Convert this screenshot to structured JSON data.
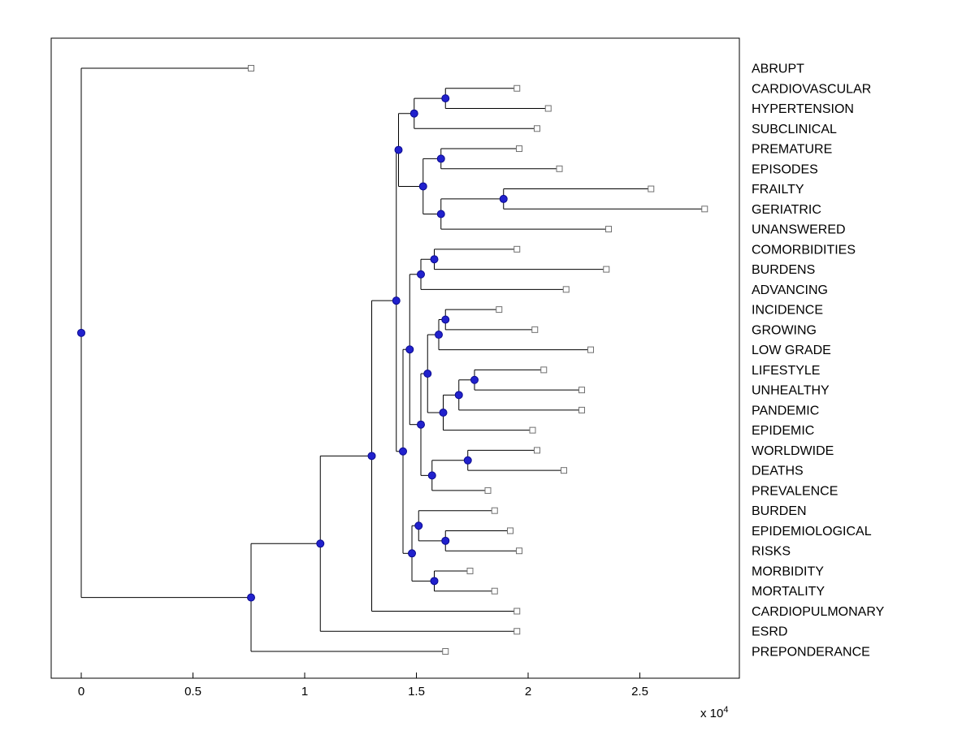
{
  "figure": {
    "background": "#ffffff",
    "plot_border_color": "#000000"
  },
  "chart_data": {
    "type": "dendrogram",
    "orientation": "left-to-right",
    "title": "",
    "grid": false,
    "legend": null,
    "x_axis": {
      "ticks": [
        0,
        0.5,
        1,
        1.5,
        2,
        2.5
      ],
      "tick_labels": [
        "0",
        "0.5",
        "1",
        "1.5",
        "2",
        "2.5"
      ],
      "units_multiplier": 10000,
      "multiplier_label": "x 10",
      "multiplier_exponent": "4",
      "xlim": [
        -1300,
        29500
      ]
    },
    "leaves": [
      {
        "label": "ABRUPT",
        "x": 7600
      },
      {
        "label": "CARDIOVASCULAR",
        "x": 19500
      },
      {
        "label": "HYPERTENSION",
        "x": 20900
      },
      {
        "label": "SUBCLINICAL",
        "x": 20400
      },
      {
        "label": "PREMATURE",
        "x": 19600
      },
      {
        "label": "EPISODES",
        "x": 21400
      },
      {
        "label": "FRAILTY",
        "x": 25500
      },
      {
        "label": "GERIATRIC",
        "x": 27900
      },
      {
        "label": "UNANSWERED",
        "x": 23600
      },
      {
        "label": "COMORBIDITIES",
        "x": 19500
      },
      {
        "label": "BURDENS",
        "x": 23500
      },
      {
        "label": "ADVANCING",
        "x": 21700
      },
      {
        "label": "INCIDENCE",
        "x": 18700
      },
      {
        "label": "GROWING",
        "x": 20300
      },
      {
        "label": "LOW GRADE",
        "x": 22800
      },
      {
        "label": "LIFESTYLE",
        "x": 20700
      },
      {
        "label": "UNHEALTHY",
        "x": 22400
      },
      {
        "label": "PANDEMIC",
        "x": 22400
      },
      {
        "label": "EPIDEMIC",
        "x": 20200
      },
      {
        "label": "WORLDWIDE",
        "x": 20400
      },
      {
        "label": "DEATHS",
        "x": 21600
      },
      {
        "label": "PREVALENCE",
        "x": 18200
      },
      {
        "label": "BURDEN",
        "x": 18500
      },
      {
        "label": "EPIDEMIOLOGICAL",
        "x": 19200
      },
      {
        "label": "RISKS",
        "x": 19600
      },
      {
        "label": "MORBIDITY",
        "x": 17400
      },
      {
        "label": "MORTALITY",
        "x": 18500
      },
      {
        "label": "CARDIOPULMONARY",
        "x": 19500
      },
      {
        "label": "ESRD",
        "x": 19500
      },
      {
        "label": "PREPONDERANCE",
        "x": 16300
      }
    ],
    "nodes": [
      {
        "id": "t1",
        "x": 16300,
        "children": [
          "L1",
          "L2"
        ]
      },
      {
        "id": "t2",
        "x": 14900,
        "children": [
          "t1",
          "L3"
        ]
      },
      {
        "id": "t3",
        "x": 16100,
        "children": [
          "L4",
          "L5"
        ]
      },
      {
        "id": "t4",
        "x": 18900,
        "children": [
          "L6",
          "L7"
        ]
      },
      {
        "id": "t5",
        "x": 16100,
        "children": [
          "t4",
          "L8"
        ]
      },
      {
        "id": "t6",
        "x": 15300,
        "children": [
          "t3",
          "t5"
        ]
      },
      {
        "id": "t7",
        "x": 14200,
        "children": [
          "t2",
          "t6"
        ]
      },
      {
        "id": "m1",
        "x": 15800,
        "children": [
          "L9",
          "L10"
        ]
      },
      {
        "id": "m2",
        "x": 15200,
        "children": [
          "m1",
          "L11"
        ]
      },
      {
        "id": "m3",
        "x": 16300,
        "children": [
          "L12",
          "L13"
        ]
      },
      {
        "id": "m4",
        "x": 16000,
        "children": [
          "m3",
          "L14"
        ]
      },
      {
        "id": "m5",
        "x": 17600,
        "children": [
          "L15",
          "L16"
        ]
      },
      {
        "id": "m6",
        "x": 16900,
        "children": [
          "m5",
          "L17"
        ]
      },
      {
        "id": "m7",
        "x": 16200,
        "children": [
          "m6",
          "L18"
        ]
      },
      {
        "id": "m8",
        "x": 15500,
        "children": [
          "m4",
          "m7"
        ]
      },
      {
        "id": "m9",
        "x": 17300,
        "children": [
          "L19",
          "L20"
        ]
      },
      {
        "id": "m10",
        "x": 15700,
        "children": [
          "m9",
          "L21"
        ]
      },
      {
        "id": "m11",
        "x": 15200,
        "children": [
          "m8",
          "m10"
        ]
      },
      {
        "id": "m12",
        "x": 14700,
        "children": [
          "m2",
          "m11"
        ]
      },
      {
        "id": "m13",
        "x": 16300,
        "children": [
          "L23",
          "L24"
        ]
      },
      {
        "id": "m14",
        "x": 15100,
        "children": [
          "L22",
          "m13"
        ]
      },
      {
        "id": "m15",
        "x": 15800,
        "children": [
          "L25",
          "L26"
        ]
      },
      {
        "id": "m16",
        "x": 14800,
        "children": [
          "m14",
          "m15"
        ]
      },
      {
        "id": "m17",
        "x": 14400,
        "children": [
          "m12",
          "m16"
        ]
      },
      {
        "id": "g1",
        "x": 14100,
        "children": [
          "t7",
          "m17"
        ]
      },
      {
        "id": "g2",
        "x": 13000,
        "children": [
          "g1",
          "L27"
        ]
      },
      {
        "id": "g3",
        "x": 10700,
        "children": [
          "g2",
          "L28"
        ]
      },
      {
        "id": "g4",
        "x": 7600,
        "children": [
          "g3",
          "L29"
        ]
      },
      {
        "id": "root",
        "x": 0,
        "children": [
          "L0",
          "g4"
        ]
      }
    ],
    "styles": {
      "line_color": "#000000",
      "node_fill": "#2121cd",
      "node_edge": "#0b0b8f",
      "leaf_marker_fill": "#ffffff",
      "leaf_marker_edge": "#707070",
      "label_color": "#000000"
    }
  }
}
